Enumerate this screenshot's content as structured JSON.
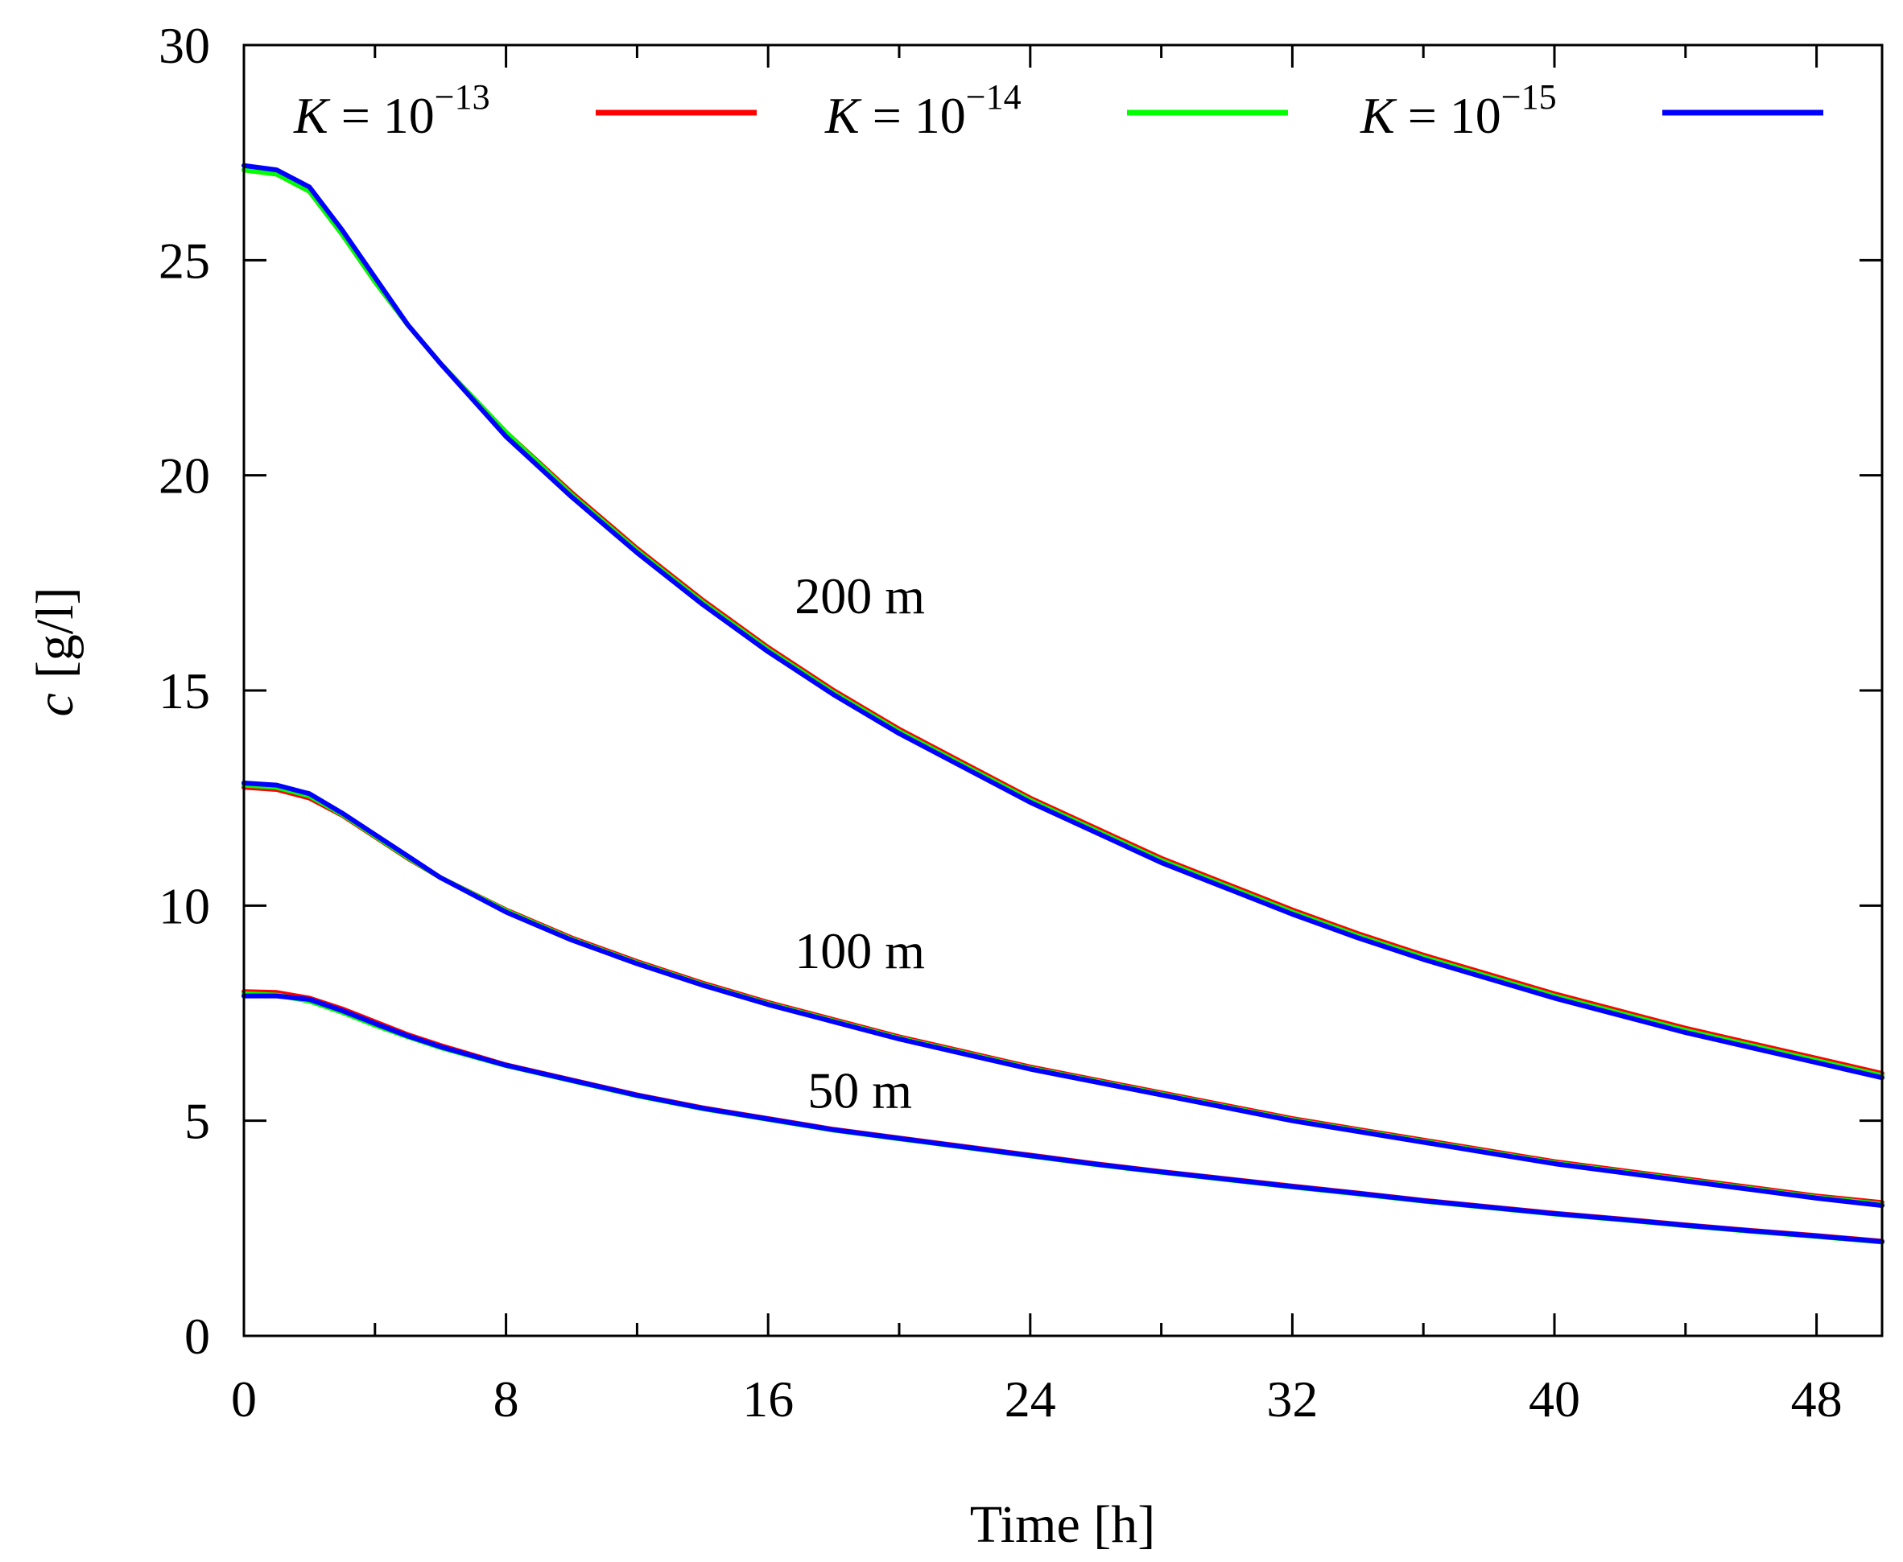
{
  "chart_data": {
    "type": "line",
    "title": "",
    "xlabel": "Time [h]",
    "ylabel_symbol": "c",
    "ylabel_unit": "[g/l]",
    "xlim": [
      0,
      50
    ],
    "ylim": [
      0,
      30
    ],
    "xticks": [
      0,
      8,
      16,
      24,
      32,
      40,
      48
    ],
    "xminor": [
      4,
      12,
      20,
      28,
      36,
      44
    ],
    "yticks": [
      0,
      5,
      10,
      15,
      20,
      25,
      30
    ],
    "x": [
      0,
      1,
      2,
      3,
      4,
      5,
      6,
      8,
      10,
      12,
      14,
      16,
      18,
      20,
      22,
      24,
      26,
      28,
      30,
      32,
      34,
      36,
      38,
      40,
      42,
      44,
      46,
      48,
      50
    ],
    "legend_position": "top",
    "legend": [
      {
        "prefix": "K",
        "text": " = 10",
        "sup": "−13",
        "color": "#ff0000"
      },
      {
        "prefix": "K",
        "text": " = 10",
        "sup": "−14",
        "color": "#00ff00"
      },
      {
        "prefix": "K",
        "text": " = 10",
        "sup": "−15",
        "color": "#0000ff"
      }
    ],
    "series": [
      {
        "name": "K = 10^-13, 200 m",
        "color": "#ff0000",
        "group": "200 m",
        "values": [
          27.1,
          27.0,
          26.6,
          25.6,
          24.5,
          23.5,
          22.6,
          21.0,
          19.6,
          18.3,
          17.1,
          16.0,
          15.0,
          14.1,
          13.3,
          12.5,
          11.8,
          11.1,
          10.5,
          9.9,
          9.35,
          8.85,
          8.4,
          7.95,
          7.55,
          7.15,
          6.8,
          6.45,
          6.1
        ]
      },
      {
        "name": "K = 10^-14, 200 m",
        "color": "#00ff00",
        "group": "200 m",
        "values": [
          27.1,
          27.0,
          26.6,
          25.6,
          24.5,
          23.5,
          22.6,
          21.0,
          19.55,
          18.25,
          17.05,
          15.95,
          14.95,
          14.05,
          13.25,
          12.45,
          11.75,
          11.05,
          10.45,
          9.85,
          9.3,
          8.8,
          8.35,
          7.9,
          7.5,
          7.1,
          6.75,
          6.4,
          6.05
        ]
      },
      {
        "name": "K = 10^-15, 200 m",
        "color": "#0000ff",
        "group": "200 m",
        "values": [
          27.2,
          27.1,
          26.7,
          25.7,
          24.6,
          23.5,
          22.6,
          20.9,
          19.5,
          18.2,
          17.0,
          15.9,
          14.9,
          14.0,
          13.2,
          12.4,
          11.7,
          11.0,
          10.4,
          9.8,
          9.25,
          8.75,
          8.3,
          7.85,
          7.45,
          7.05,
          6.7,
          6.35,
          6.0
        ]
      },
      {
        "name": "K = 10^-13, 100 m",
        "color": "#ff0000",
        "group": "100 m",
        "values": [
          12.75,
          12.7,
          12.5,
          12.1,
          11.6,
          11.1,
          10.65,
          9.9,
          9.25,
          8.7,
          8.2,
          7.75,
          7.35,
          6.95,
          6.6,
          6.25,
          5.95,
          5.65,
          5.35,
          5.05,
          4.8,
          4.55,
          4.3,
          4.05,
          3.85,
          3.65,
          3.45,
          3.25,
          3.1
        ]
      },
      {
        "name": "K = 10^-14, 100 m",
        "color": "#00ff00",
        "group": "100 m",
        "values": [
          12.8,
          12.75,
          12.55,
          12.12,
          11.62,
          11.12,
          10.65,
          9.88,
          9.22,
          8.67,
          8.17,
          7.72,
          7.32,
          6.92,
          6.57,
          6.22,
          5.92,
          5.62,
          5.32,
          5.02,
          4.77,
          4.52,
          4.27,
          4.02,
          3.82,
          3.62,
          3.42,
          3.22,
          3.06
        ]
      },
      {
        "name": "K = 10^-15, 100 m",
        "color": "#0000ff",
        "group": "100 m",
        "values": [
          12.85,
          12.8,
          12.6,
          12.15,
          11.65,
          11.15,
          10.65,
          9.85,
          9.2,
          8.65,
          8.15,
          7.7,
          7.3,
          6.9,
          6.55,
          6.2,
          5.9,
          5.6,
          5.3,
          5.0,
          4.75,
          4.5,
          4.25,
          4.0,
          3.8,
          3.6,
          3.4,
          3.2,
          3.03
        ]
      },
      {
        "name": "K = 10^-13, 50 m",
        "color": "#ff0000",
        "group": "50 m",
        "values": [
          8.0,
          7.98,
          7.85,
          7.6,
          7.3,
          7.0,
          6.75,
          6.3,
          5.95,
          5.6,
          5.3,
          5.05,
          4.8,
          4.6,
          4.4,
          4.2,
          4.0,
          3.82,
          3.65,
          3.48,
          3.32,
          3.15,
          3.0,
          2.85,
          2.72,
          2.58,
          2.45,
          2.33,
          2.2
        ]
      },
      {
        "name": "K = 10^-14, 50 m",
        "color": "#00ff00",
        "group": "50 m",
        "values": [
          7.95,
          7.92,
          7.78,
          7.52,
          7.22,
          6.95,
          6.7,
          6.28,
          5.93,
          5.58,
          5.28,
          5.03,
          4.78,
          4.58,
          4.38,
          4.18,
          3.98,
          3.8,
          3.63,
          3.46,
          3.3,
          3.13,
          2.98,
          2.83,
          2.7,
          2.56,
          2.43,
          2.31,
          2.18
        ]
      },
      {
        "name": "K = 10^-15, 50 m",
        "color": "#0000ff",
        "group": "50 m",
        "values": [
          7.9,
          7.9,
          7.82,
          7.56,
          7.26,
          6.97,
          6.72,
          6.29,
          5.94,
          5.59,
          5.29,
          5.04,
          4.79,
          4.59,
          4.39,
          4.19,
          3.99,
          3.81,
          3.64,
          3.47,
          3.31,
          3.14,
          2.99,
          2.84,
          2.71,
          2.57,
          2.44,
          2.32,
          2.19
        ]
      }
    ],
    "annotations": [
      {
        "text": "200 m",
        "x": 18.8,
        "y": 16.8
      },
      {
        "text": "100 m",
        "x": 18.8,
        "y": 8.55
      },
      {
        "text": "50 m",
        "x": 18.8,
        "y": 5.3
      }
    ]
  }
}
